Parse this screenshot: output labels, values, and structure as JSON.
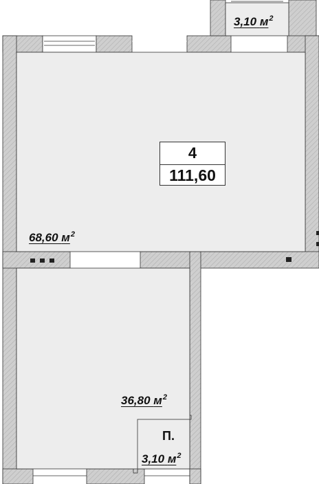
{
  "unit_tag": {
    "number": "4",
    "total_area": "111,60"
  },
  "rooms": [
    {
      "area": "68,60",
      "unit": "м",
      "power": "2"
    },
    {
      "area": "36,80",
      "unit": "м",
      "power": "2"
    },
    {
      "area": "3,10",
      "unit": "м",
      "power": "2"
    },
    {
      "area": "3,10",
      "unit": "м",
      "power": "2"
    }
  ],
  "small_room_letter": "П.",
  "colors": {
    "wall": "#c9c9c9",
    "wall_hatch": "#a8a8a8",
    "floor": "#ededed",
    "outline": "#333333"
  }
}
